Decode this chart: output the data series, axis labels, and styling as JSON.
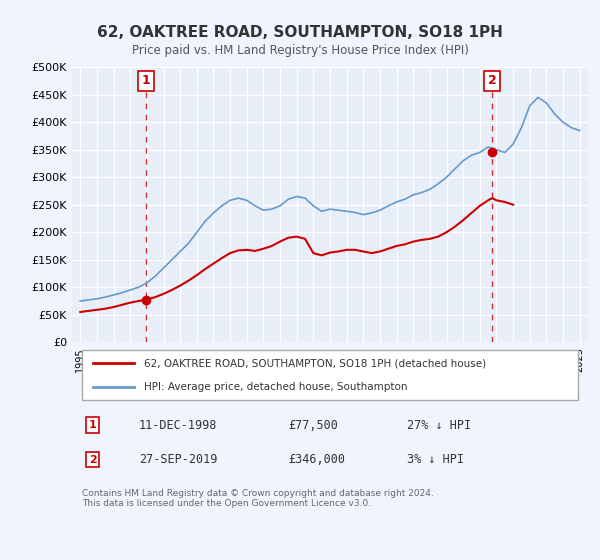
{
  "title": "62, OAKTREE ROAD, SOUTHAMPTON, SO18 1PH",
  "subtitle": "Price paid vs. HM Land Registry's House Price Index (HPI)",
  "bg_color": "#f0f4ff",
  "plot_bg_color": "#e8eef8",
  "grid_color": "#ffffff",
  "red_line_color": "#cc0000",
  "blue_line_color": "#6699cc",
  "marker1_date": 1998.95,
  "marker1_value": 77500,
  "marker2_date": 2019.75,
  "marker2_value": 346000,
  "vline1_date": 1998.95,
  "vline2_date": 2019.75,
  "ylim": [
    0,
    500000
  ],
  "xlim": [
    1994.5,
    2025.5
  ],
  "legend_label_red": "62, OAKTREE ROAD, SOUTHAMPTON, SO18 1PH (detached house)",
  "legend_label_blue": "HPI: Average price, detached house, Southampton",
  "annotation1_num": "1",
  "annotation1_date": "11-DEC-1998",
  "annotation1_price": "£77,500",
  "annotation1_hpi": "27% ↓ HPI",
  "annotation2_num": "2",
  "annotation2_date": "27-SEP-2019",
  "annotation2_price": "£346,000",
  "annotation2_hpi": "3% ↓ HPI",
  "footer": "Contains HM Land Registry data © Crown copyright and database right 2024.\nThis data is licensed under the Open Government Licence v3.0.",
  "yticks": [
    0,
    50000,
    100000,
    150000,
    200000,
    250000,
    300000,
    350000,
    400000,
    450000,
    500000
  ],
  "ytick_labels": [
    "£0",
    "£50K",
    "£100K",
    "£150K",
    "£200K",
    "£250K",
    "£300K",
    "£350K",
    "£400K",
    "£450K",
    "£500K"
  ]
}
